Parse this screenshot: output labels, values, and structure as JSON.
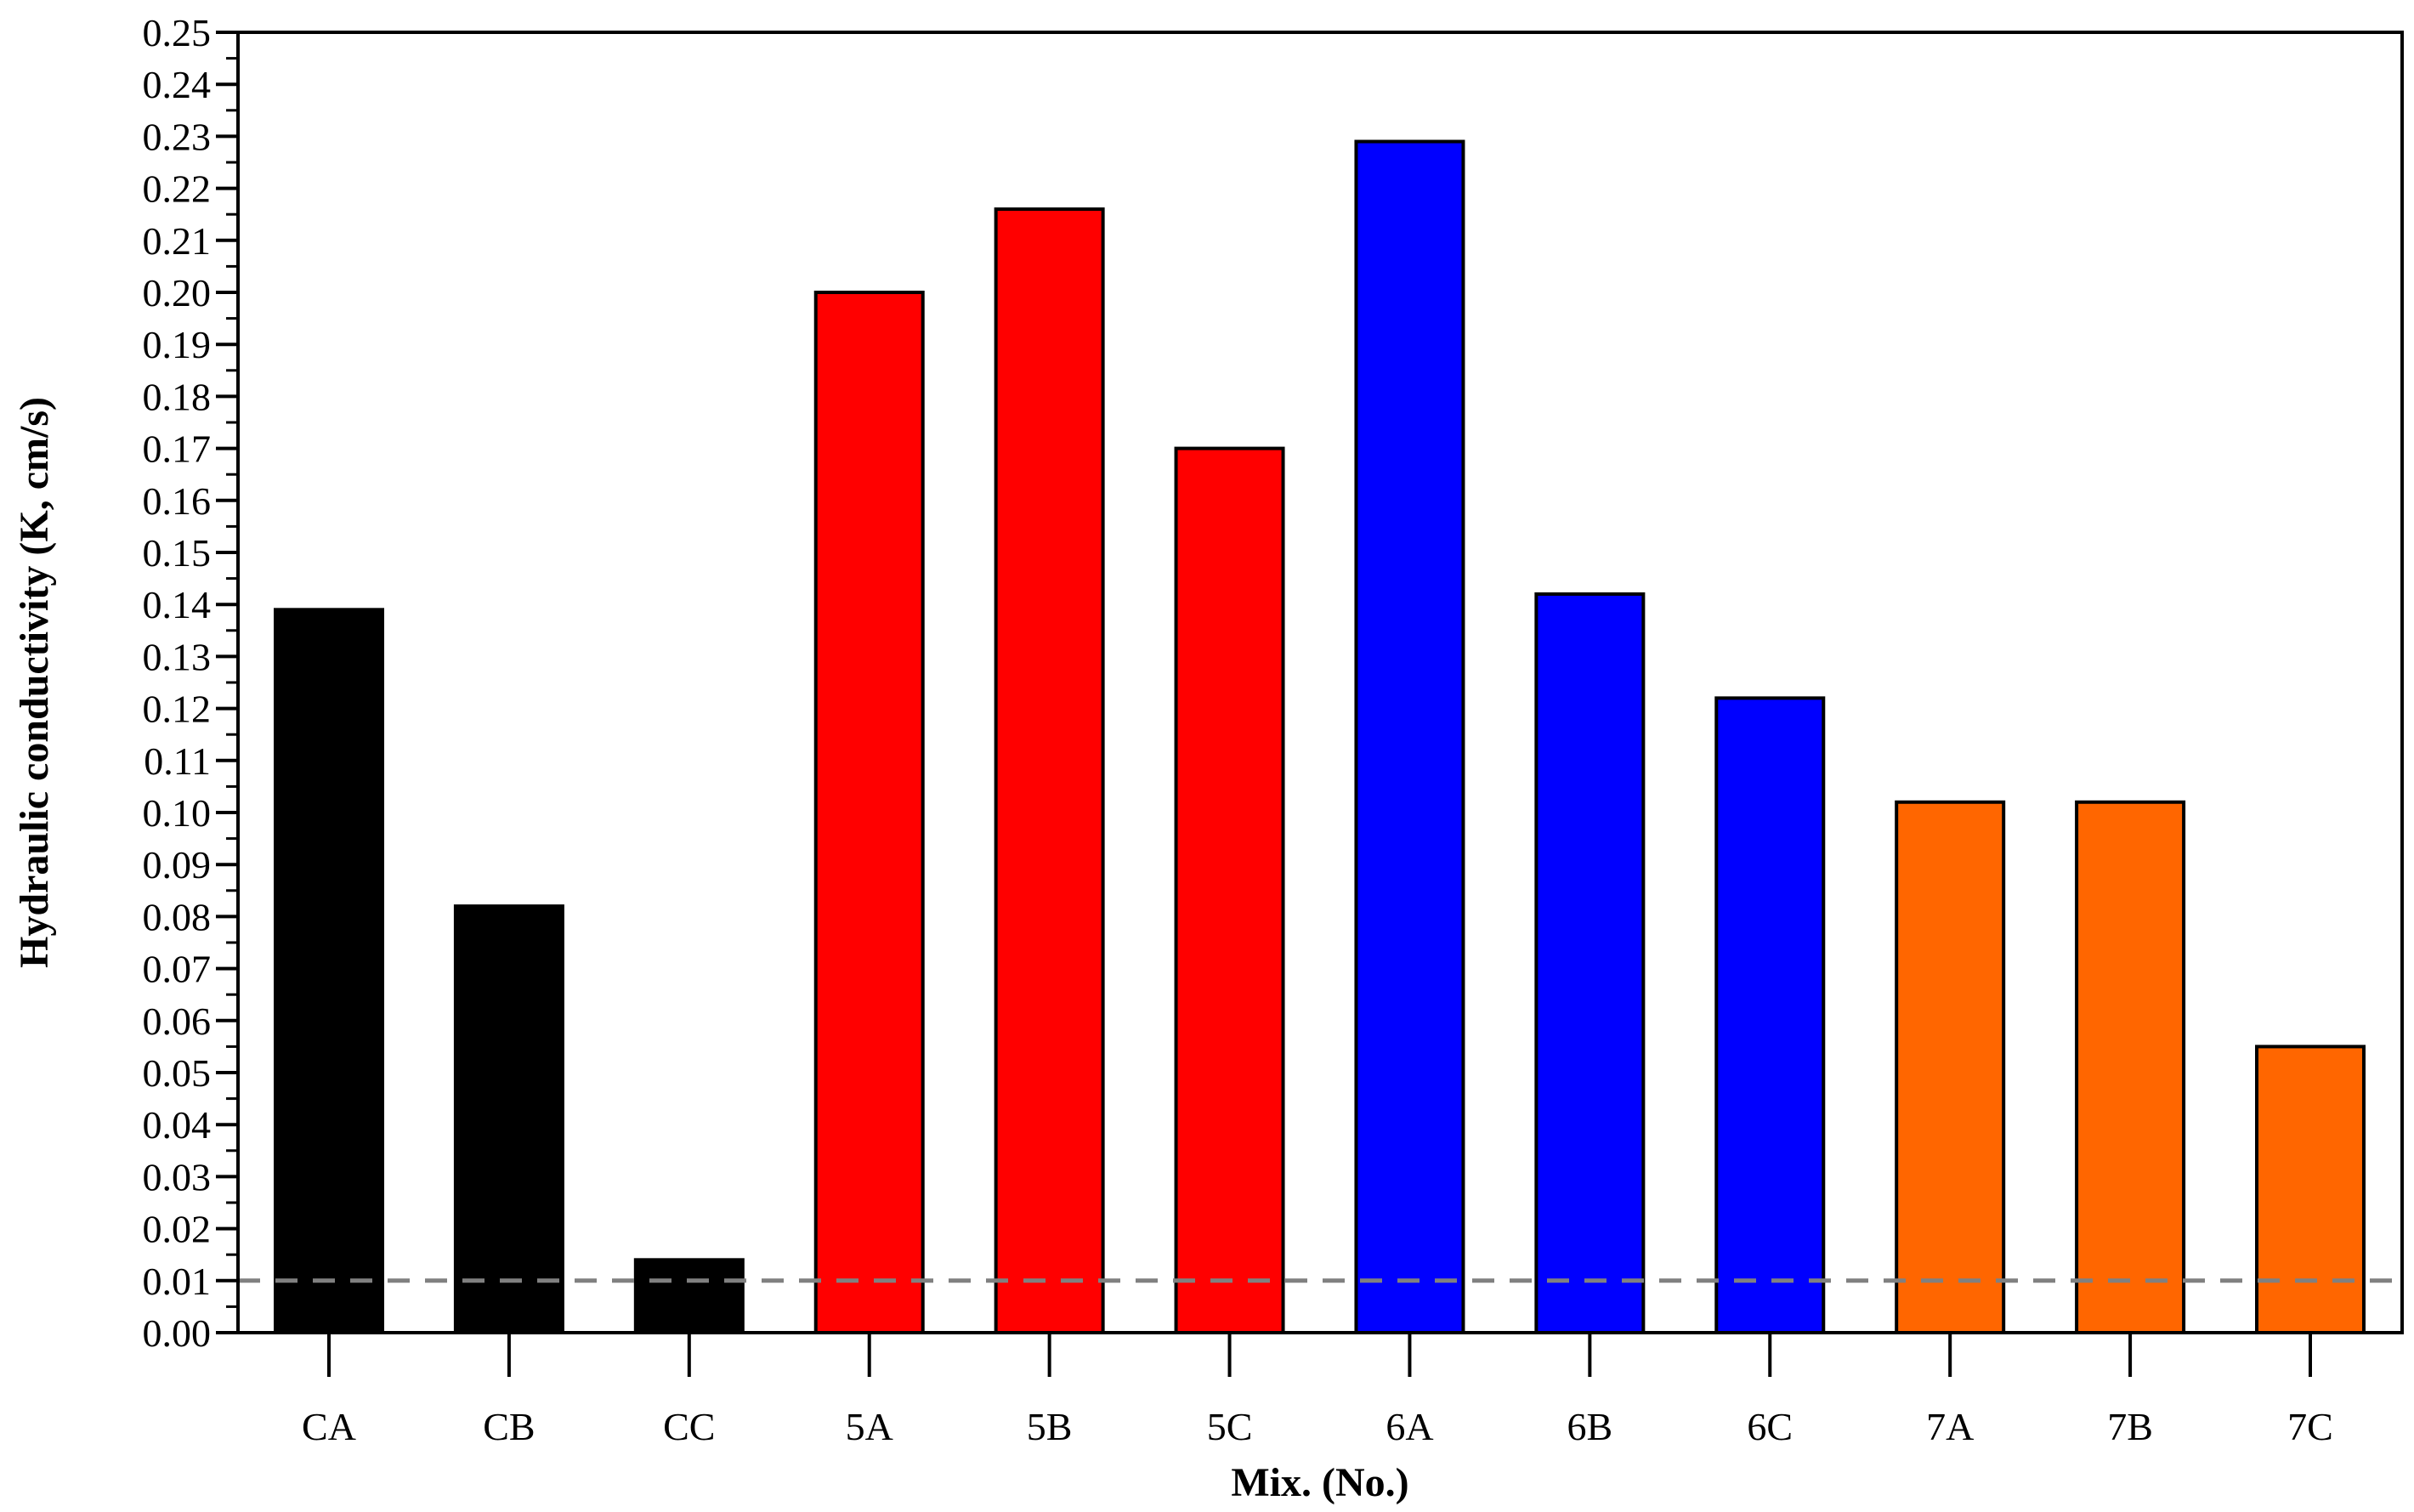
{
  "chart_data": {
    "type": "bar",
    "title": "",
    "xlabel": "Mix. (No.)",
    "ylabel": "Hydraulic conductivity (K, cm/s)",
    "ylim": [
      0,
      0.25
    ],
    "y_major_step": 0.01,
    "y_minor_step": 0.005,
    "grid": false,
    "legend": "none",
    "categories": [
      "CA",
      "CB",
      "CC",
      "5A",
      "5B",
      "5C",
      "6A",
      "6B",
      "6C",
      "7A",
      "7B",
      "7C"
    ],
    "values": [
      0.139,
      0.082,
      0.014,
      0.2,
      0.216,
      0.17,
      0.229,
      0.142,
      0.122,
      0.102,
      0.102,
      0.055
    ],
    "bar_colors": [
      "#000000",
      "#000000",
      "#000000",
      "#ff0000",
      "#ff0000",
      "#ff0000",
      "#0000ff",
      "#0000ff",
      "#0000ff",
      "#ff6600",
      "#ff6600",
      "#ff6600"
    ],
    "reference_line": {
      "y": 0.01,
      "style": "dashed",
      "color": "#808080"
    }
  }
}
